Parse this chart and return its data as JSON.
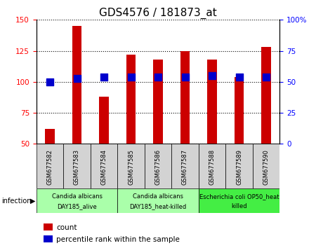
{
  "title": "GDS4576 / 181873_at",
  "samples": [
    "GSM677582",
    "GSM677583",
    "GSM677584",
    "GSM677585",
    "GSM677586",
    "GSM677587",
    "GSM677588",
    "GSM677589",
    "GSM677590"
  ],
  "counts": [
    62,
    145,
    88,
    122,
    118,
    125,
    118,
    104,
    128
  ],
  "percentile_ranks": [
    50,
    53,
    54,
    54,
    54,
    54,
    55,
    54,
    54
  ],
  "ylim_left": [
    50,
    150
  ],
  "ylim_right": [
    0,
    100
  ],
  "yticks_left": [
    50,
    75,
    100,
    125,
    150
  ],
  "yticks_right": [
    0,
    25,
    50,
    75,
    100
  ],
  "ytick_labels_right": [
    "0",
    "25",
    "50",
    "75",
    "100%"
  ],
  "bar_color": "#cc0000",
  "dot_color": "#0000cc",
  "bar_width": 0.35,
  "dot_size": 45,
  "groups": [
    {
      "label": "Candida albicans\nDAY185_alive",
      "start": 0,
      "end": 3,
      "color": "#aaffaa"
    },
    {
      "label": "Candida albicans\nDAY185_heat-killed",
      "start": 3,
      "end": 6,
      "color": "#aaffaa"
    },
    {
      "label": "Escherichia coli OP50_heat\nkilled",
      "start": 6,
      "end": 9,
      "color": "#44ee44"
    }
  ],
  "infection_label": "infection",
  "legend_items": [
    {
      "label": "count",
      "color": "#cc0000"
    },
    {
      "label": "percentile rank within the sample",
      "color": "#0000cc"
    }
  ],
  "grid_color": "#000000",
  "bg_color": "#ffffff",
  "sample_box_color": "#d3d3d3",
  "title_fontsize": 11,
  "tick_fontsize": 7.5,
  "sample_fontsize": 6,
  "group_fontsize": 6,
  "legend_fontsize": 7.5
}
